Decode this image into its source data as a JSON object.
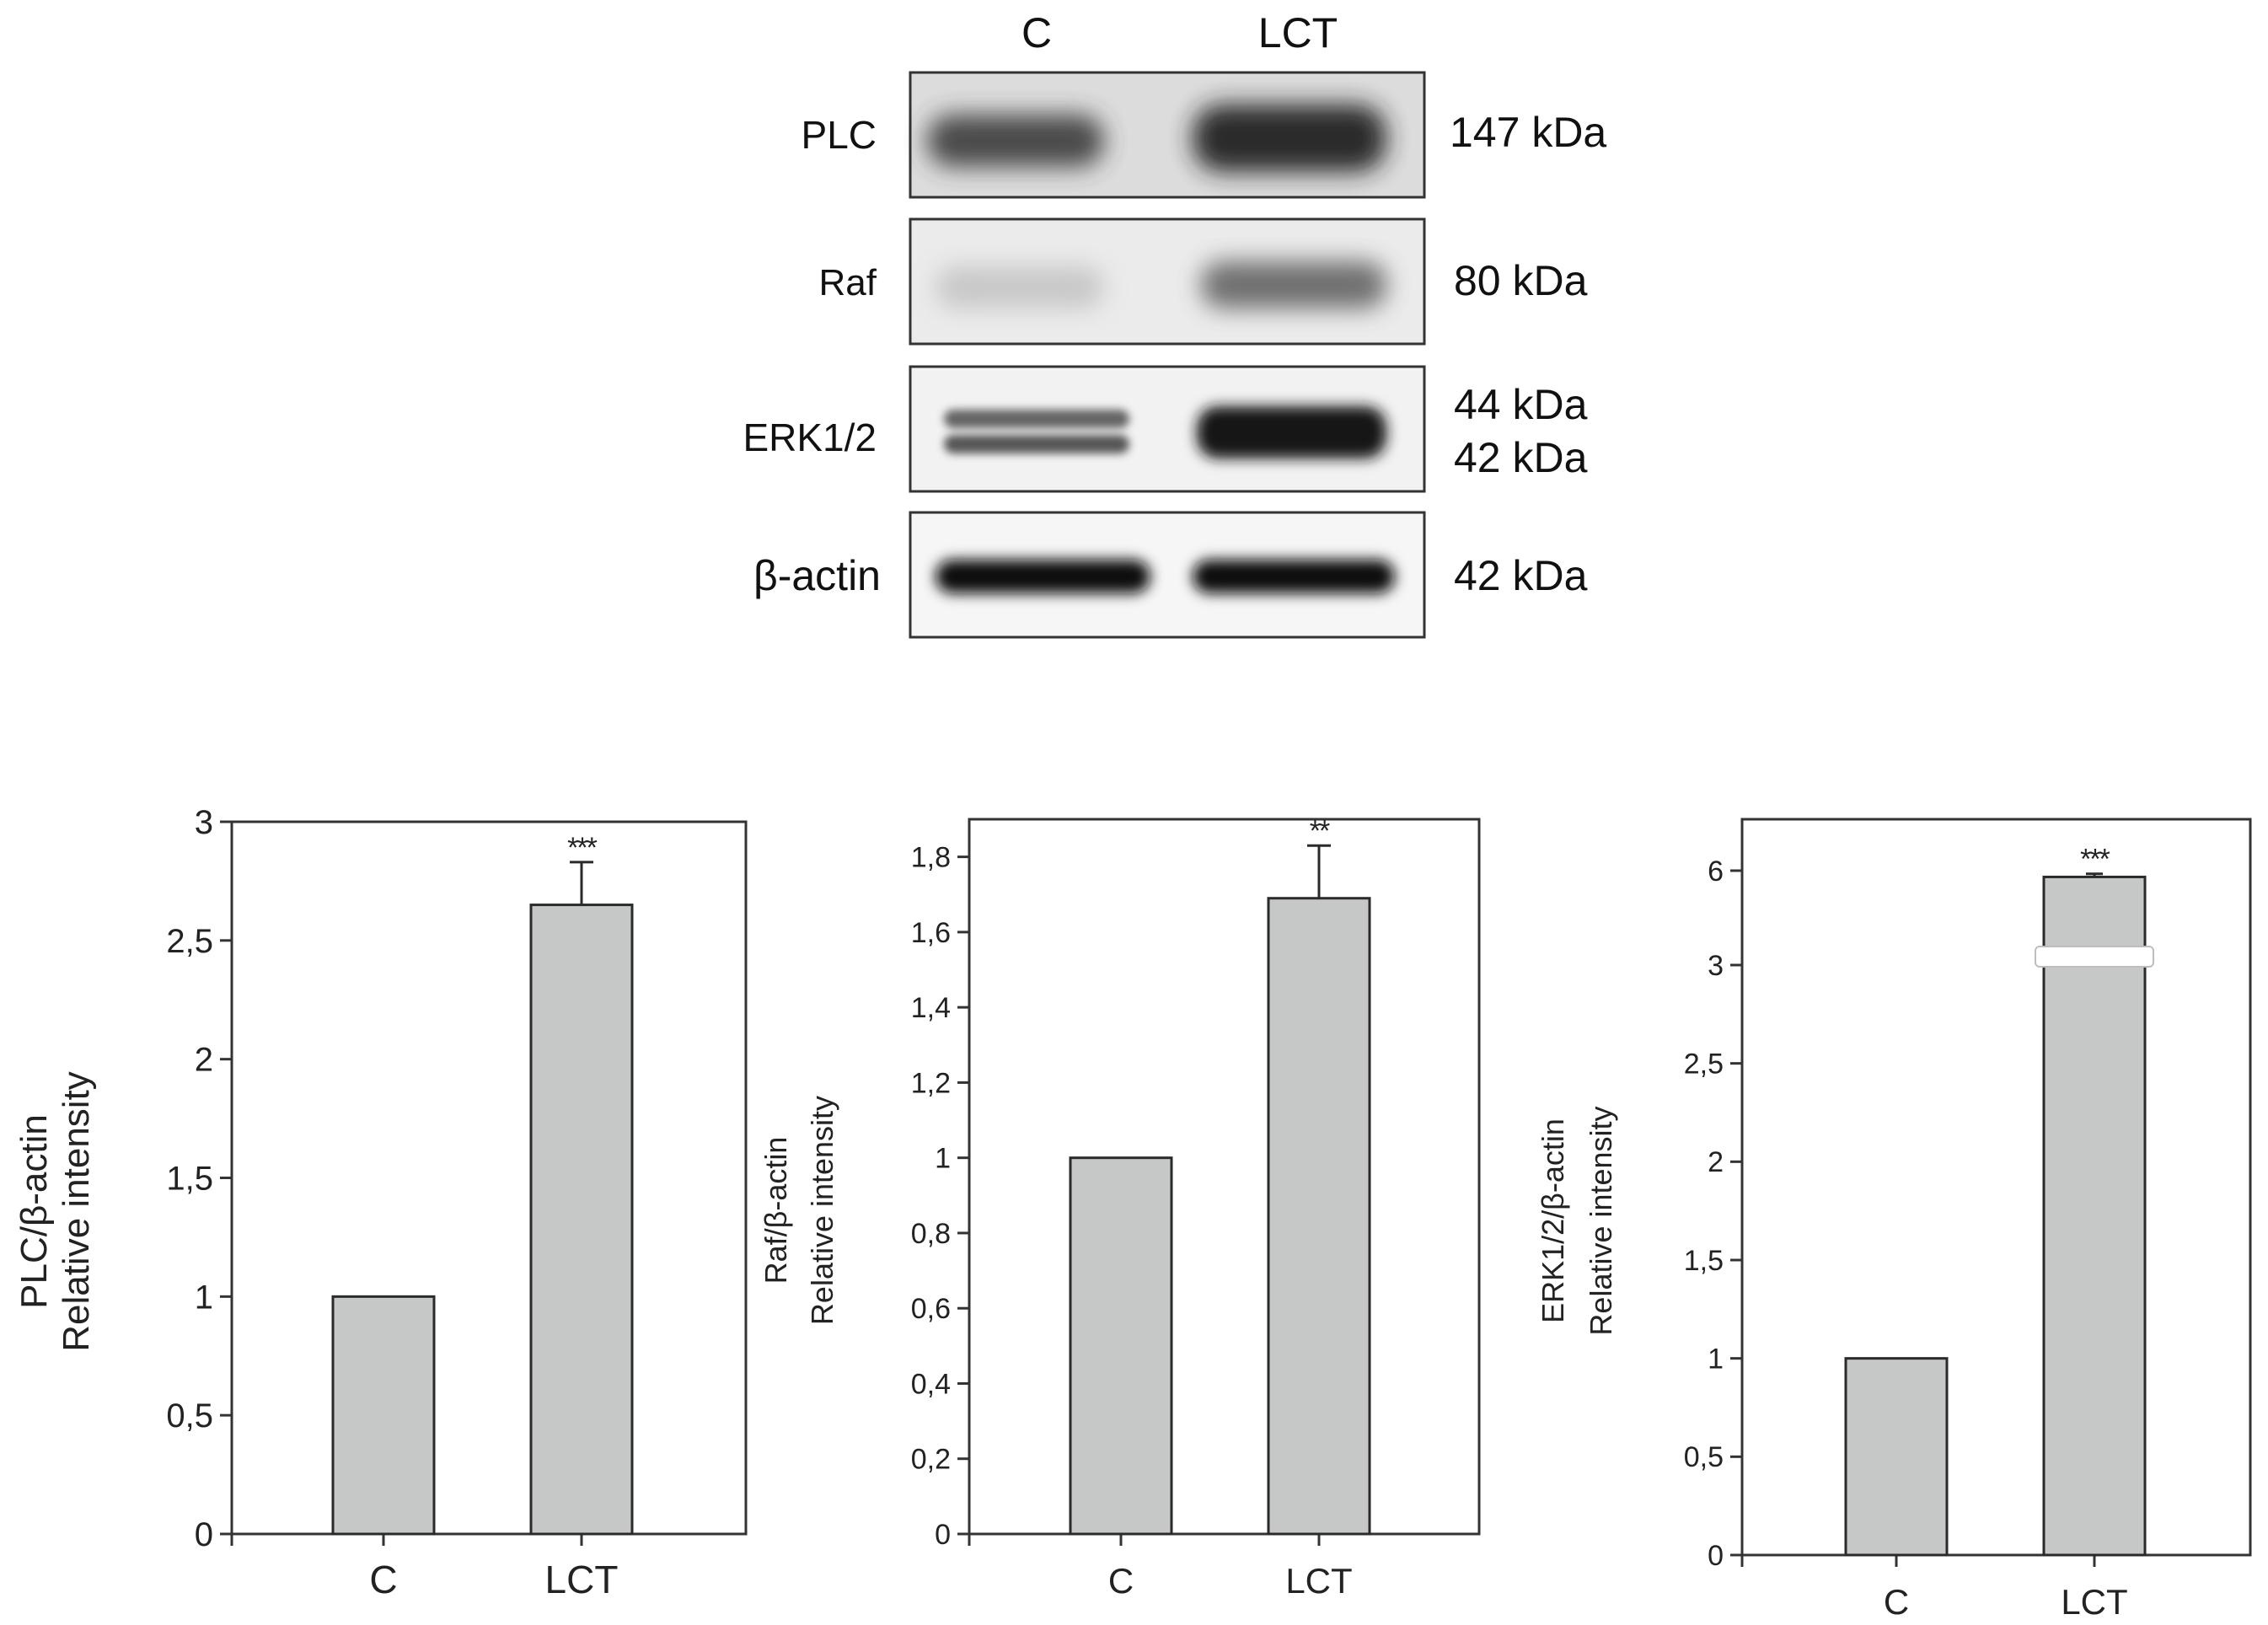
{
  "blot": {
    "lanes": [
      "C",
      "LCT"
    ],
    "rows": [
      {
        "label": "PLC",
        "markers": [
          "147 kDa"
        ]
      },
      {
        "label": "Raf",
        "markers": [
          "80 kDa"
        ]
      },
      {
        "label": "ERK1/2",
        "markers": [
          "44 kDa",
          "42 kDa"
        ]
      },
      {
        "label": "β-actin",
        "markers": [
          "42 kDa"
        ]
      }
    ]
  },
  "chart_data": [
    {
      "type": "bar",
      "categories": [
        "C",
        "LCT"
      ],
      "values": [
        1.0,
        2.65
      ],
      "errors": [
        0,
        0.18
      ],
      "significance": [
        "",
        "***"
      ],
      "ylabel": [
        "PLC/β-actin",
        "Relative intensity"
      ],
      "ylim": [
        0,
        3
      ],
      "yticks": [
        "0",
        "0,5",
        "1",
        "1,5",
        "2",
        "2,5",
        "3"
      ],
      "bar_color": "#c6c8c7"
    },
    {
      "type": "bar",
      "categories": [
        "C",
        "LCT"
      ],
      "values": [
        1.0,
        1.69
      ],
      "errors": [
        0,
        0.14
      ],
      "significance": [
        "",
        "**"
      ],
      "ylabel": [
        "Raf/β-actin",
        "Relative intensity"
      ],
      "ylim": [
        0,
        1.9
      ],
      "yticks": [
        "0",
        "0,2",
        "0,4",
        "0,6",
        "0,8",
        "1",
        "1,2",
        "1,4",
        "1,6",
        "1,8"
      ],
      "bar_color": "#c6c8c7"
    },
    {
      "type": "bar",
      "categories": [
        "C",
        "LCT"
      ],
      "values": [
        1.0,
        5.8
      ],
      "errors": [
        0,
        0.1
      ],
      "significance": [
        "",
        "***"
      ],
      "axis_break": "between 3 and 6",
      "ylabel": [
        "ERK1/2/β-actin",
        "Relative intensity"
      ],
      "yticks": [
        "0",
        "0,5",
        "1",
        "1,5",
        "2",
        "2,5",
        "3",
        "6"
      ],
      "bar_color": "#c6c8c7"
    }
  ]
}
